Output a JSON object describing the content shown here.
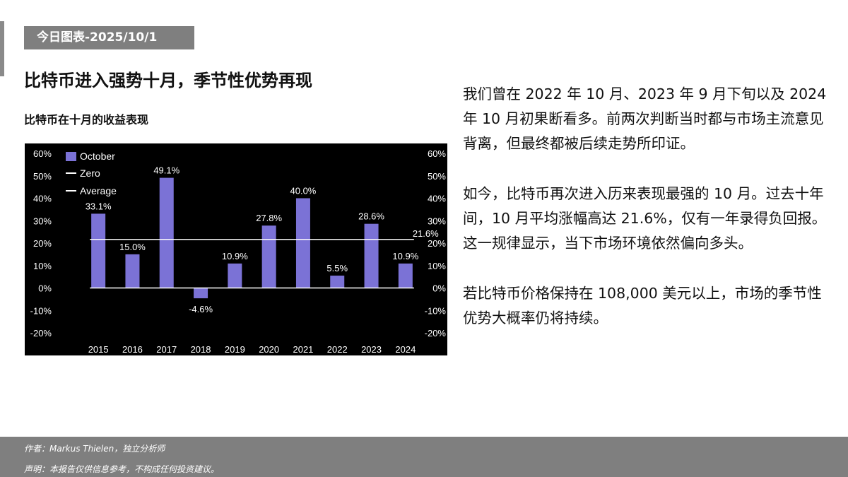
{
  "header": {
    "date_tag": "今日图表-2025/10/1",
    "title": "比特币进入强势十月，季节性优势再现",
    "chart_caption": "比特币在十月的收益表现"
  },
  "commentary": [
    "我们曾在 2022 年 10 月、2023 年 9 月下旬以及 2024 年 10 月初果断看多。前两次判断当时都与市场主流意见背离，但最终都被后续走势所印证。",
    "如今，比特币再次进入历来表现最强的 10 月。过去十年间，10 月平均涨幅高达 21.6%，仅有一年录得负回报。这一规律显示，当下市场环境依然偏向多头。",
    "若比特币价格保持在 108,000 美元以上，市场的季节性优势大概率仍将持续。"
  ],
  "footer": {
    "author": "作者：Markus Thielen，独立分析师",
    "disclaimer": "声明：本报告仅供信息参考，不构成任何投资建议。"
  },
  "colors": {
    "bar": "#7b72d6",
    "chart_bg": "#000000",
    "line": "#ffffff",
    "tag_bg": "#7f7f7f"
  },
  "chart_data": {
    "type": "bar",
    "categories": [
      "2015",
      "2016",
      "2017",
      "2018",
      "2019",
      "2020",
      "2021",
      "2022",
      "2023",
      "2024"
    ],
    "series": [
      {
        "name": "October",
        "values": [
          33.1,
          15.0,
          49.1,
          -4.6,
          10.9,
          27.8,
          40.0,
          5.5,
          28.6,
          10.9
        ],
        "labels": [
          "33.1%",
          "15.0%",
          "49.1%",
          "-4.6%",
          "10.9%",
          "27.8%",
          "40.0%",
          "5.5%",
          "28.6%",
          "10.9%"
        ]
      },
      {
        "name": "Zero",
        "value": 0
      },
      {
        "name": "Average",
        "value": 21.6,
        "label": "21.6%"
      }
    ],
    "ylim": [
      -20,
      60
    ],
    "yticks": [
      60,
      50,
      40,
      30,
      20,
      10,
      0,
      -10,
      -20
    ],
    "ytick_labels": [
      "60%",
      "50%",
      "40%",
      "30%",
      "20%",
      "10%",
      "0%",
      "-10%",
      "-20%"
    ],
    "legend_position": "top-left",
    "dual_y_axis": true,
    "grid": false
  }
}
